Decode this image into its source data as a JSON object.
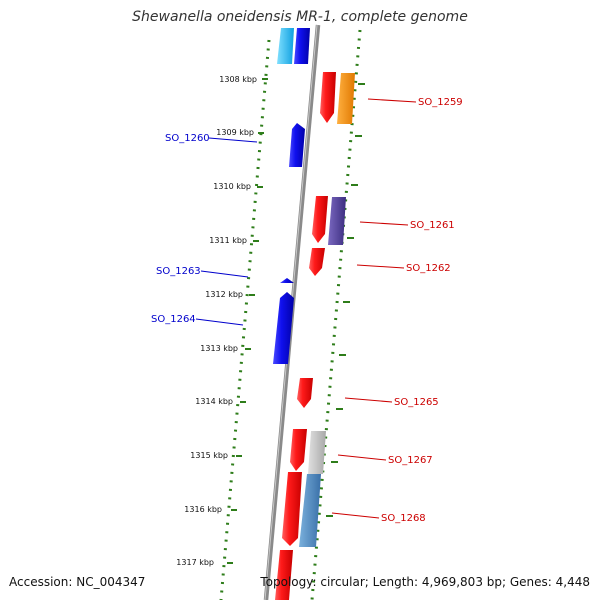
{
  "title": "Shewanella oneidensis MR-1, complete genome",
  "footer": {
    "accession": "Accession: NC_004347",
    "topology": "Topology: circular; Length: 4,969,803 bp; Genes: 4,448"
  },
  "colors": {
    "forward_gene": "#ee0000",
    "reverse_gene": "#0000dd",
    "label_forward": "#cc0000",
    "label_reverse": "#0000cc",
    "ticks": "#2e7d1a",
    "backbone": "#8a8a8a"
  },
  "kbp_labels": [
    "1308 kbp",
    "1309 kbp",
    "1310 kbp",
    "1311 kbp",
    "1312 kbp",
    "1313 kbp",
    "1314 kbp",
    "1315 kbp",
    "1316 kbp",
    "1317 kbp"
  ],
  "gene_labels_reverse": [
    "SO_1260",
    "SO_1263",
    "SO_1264"
  ],
  "gene_labels_forward": [
    "SO_1259",
    "SO_1261",
    "SO_1262",
    "SO_1265",
    "SO_1267",
    "SO_1268"
  ]
}
